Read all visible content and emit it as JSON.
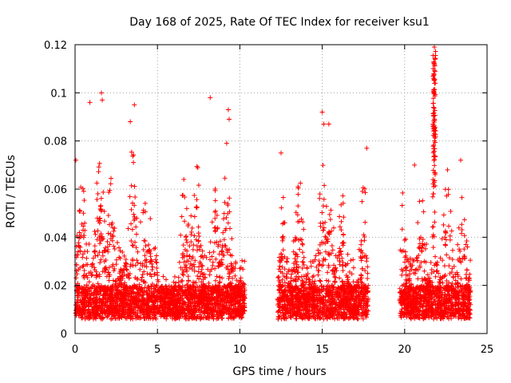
{
  "chart_data": {
    "type": "scatter",
    "title": "Day 168 of 2025, Rate Of TEC Index for receiver ksu1",
    "xlabel": "GPS time / hours",
    "ylabel": "ROTI / TECUs",
    "xlim": [
      0,
      25
    ],
    "ylim": [
      0,
      0.12
    ],
    "xticks": [
      0,
      5,
      10,
      15,
      20,
      25
    ],
    "yticks": [
      0,
      0.02,
      0.04,
      0.06,
      0.08,
      0.1,
      0.12
    ],
    "xtick_labels": [
      "0",
      "5",
      "10",
      "15",
      "20",
      "25"
    ],
    "ytick_labels": [
      "0",
      "0.02",
      "0.04",
      "0.06",
      "0.08",
      "0.1",
      "0.12"
    ],
    "grid": true,
    "marker": "plus",
    "marker_color": "#ff0000",
    "data_coverage_hours": [
      [
        0,
        10.3
      ],
      [
        12.3,
        17.8
      ],
      [
        19.7,
        24.0
      ]
    ],
    "notable_points": [
      {
        "x": 0.05,
        "y": 0.072
      },
      {
        "x": 0.9,
        "y": 0.096
      },
      {
        "x": 1.6,
        "y": 0.1
      },
      {
        "x": 1.65,
        "y": 0.097
      },
      {
        "x": 3.6,
        "y": 0.095
      },
      {
        "x": 3.35,
        "y": 0.088
      },
      {
        "x": 6.6,
        "y": 0.064
      },
      {
        "x": 8.2,
        "y": 0.098
      },
      {
        "x": 9.3,
        "y": 0.093
      },
      {
        "x": 9.35,
        "y": 0.089
      },
      {
        "x": 9.2,
        "y": 0.079
      },
      {
        "x": 12.5,
        "y": 0.075
      },
      {
        "x": 15.0,
        "y": 0.092
      },
      {
        "x": 15.4,
        "y": 0.087
      },
      {
        "x": 15.1,
        "y": 0.087
      },
      {
        "x": 17.7,
        "y": 0.077
      },
      {
        "x": 20.6,
        "y": 0.07
      },
      {
        "x": 21.8,
        "y": 0.119
      },
      {
        "x": 21.85,
        "y": 0.114
      },
      {
        "x": 21.8,
        "y": 0.1
      },
      {
        "x": 21.8,
        "y": 0.085
      },
      {
        "x": 22.6,
        "y": 0.068
      },
      {
        "x": 23.4,
        "y": 0.072
      }
    ]
  }
}
